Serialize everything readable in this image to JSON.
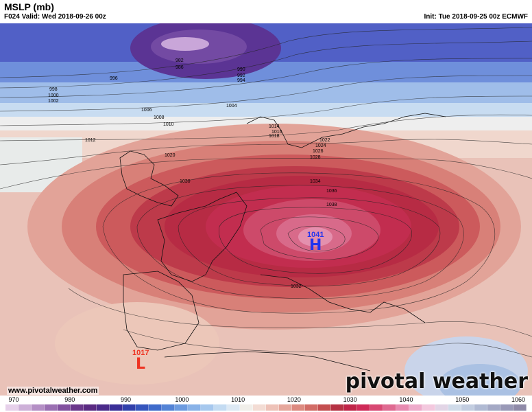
{
  "header": {
    "title": "MSLP (mb)",
    "valid": "F024 Valid: Wed 2018-09-26 00z",
    "init": "Init: Tue 2018-09-25 00z ECMWF"
  },
  "systems": {
    "high": {
      "letter": "H",
      "value": "1041",
      "color": "#2233ee"
    },
    "low": {
      "letter": "L",
      "value": "1017",
      "color": "#ee3322"
    }
  },
  "isobar_labels": [
    "982",
    "986",
    "990",
    "992",
    "994",
    "996",
    "998",
    "1000",
    "1002",
    "1004",
    "1006",
    "1008",
    "1010",
    "1012",
    "1014",
    "1016",
    "1018",
    "1020",
    "1022",
    "1024",
    "1026",
    "1028",
    "1030",
    "1032",
    "1034",
    "1036",
    "1038"
  ],
  "footer": {
    "website": "www.pivotalweather.com",
    "brand": "pivotal weather"
  },
  "legend": {
    "ticks": [
      "970",
      "980",
      "990",
      "1000",
      "1010",
      "1020",
      "1030",
      "1040",
      "1050",
      "1060"
    ],
    "colors": [
      "#e6d0ea",
      "#cdb0d8",
      "#b48fc5",
      "#9a6fb2",
      "#82519f",
      "#6a378b",
      "#5a2a82",
      "#4a2a8a",
      "#3a2f98",
      "#3140ab",
      "#3555bd",
      "#3f6bcb",
      "#5383d6",
      "#6c9be0",
      "#88b2e8",
      "#a6c8ee",
      "#c3dbf2",
      "#dde9f4",
      "#f1efea",
      "#f3dcd4",
      "#eec2b8",
      "#e6a79c",
      "#dd8a80",
      "#d26c66",
      "#c44e50",
      "#b63244",
      "#c02548",
      "#cf2a58",
      "#d84873",
      "#df6a91",
      "#e78ab0",
      "#eeabcb",
      "#f3c8de",
      "#e2d5e6",
      "#d0dbe9",
      "#c2cde0",
      "#b0bad3",
      "#a4a9c5",
      "#9999b7",
      "#8f8aa8"
    ]
  }
}
